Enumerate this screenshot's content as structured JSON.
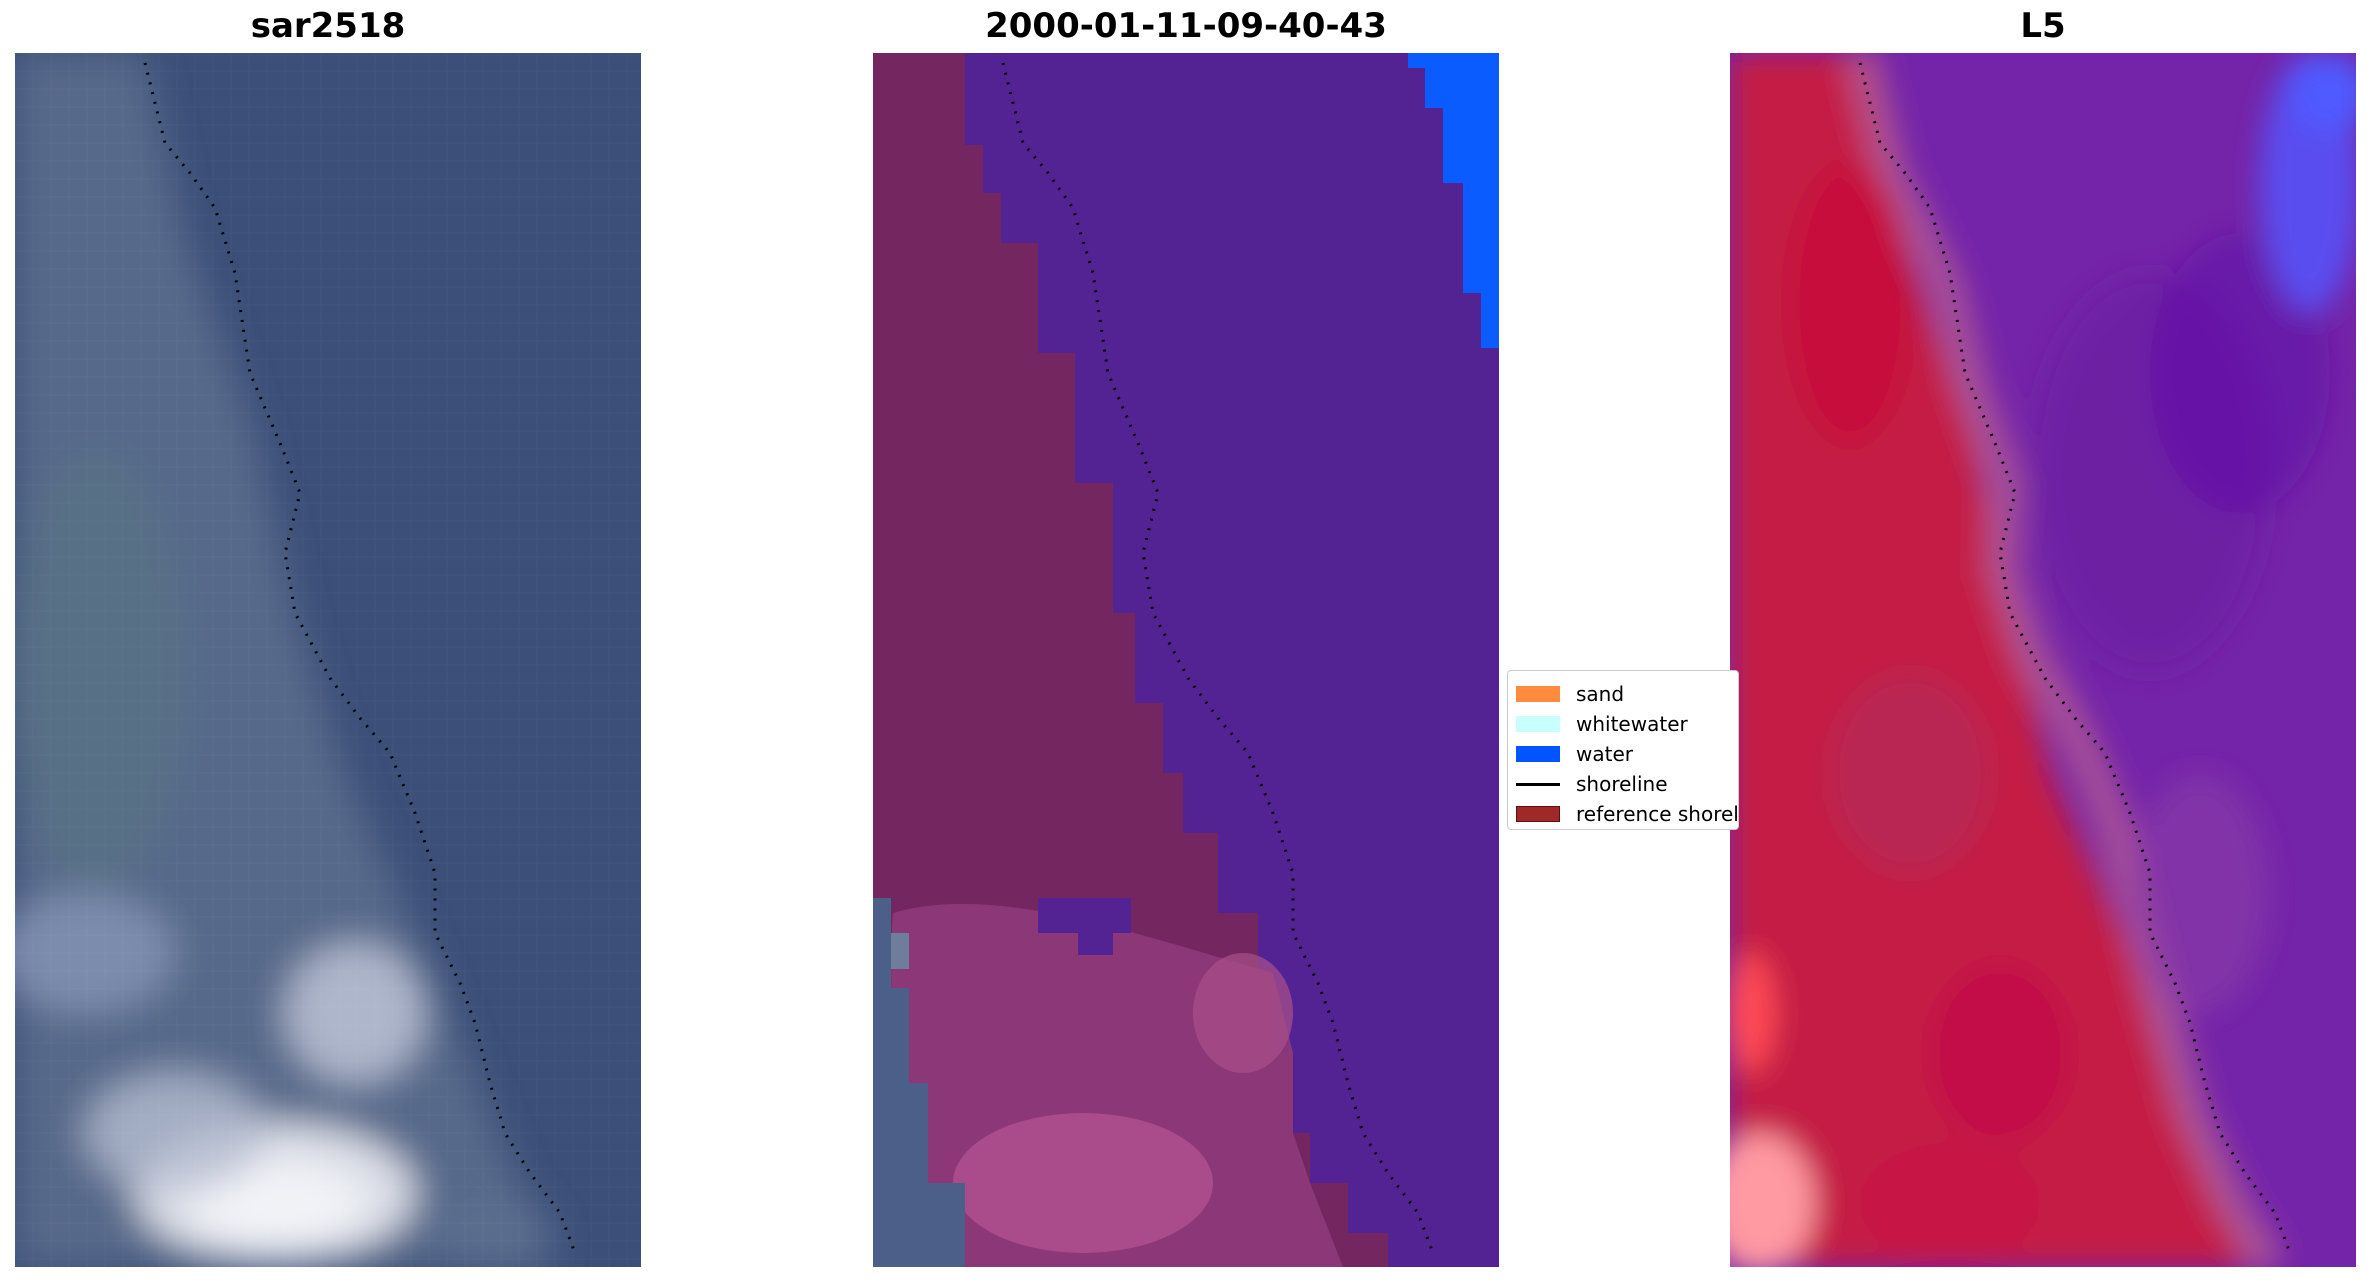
{
  "panels": [
    {
      "title": "sar2518",
      "kind": "rgb-image"
    },
    {
      "title": "2000-01-11-09-40-43",
      "kind": "classified-image"
    },
    {
      "title": "L5",
      "kind": "false-color-image"
    }
  ],
  "legend": {
    "items": [
      {
        "label": "sand",
        "color": "#ff8c3e",
        "type": "patch"
      },
      {
        "label": "whitewater",
        "color": "#c8ffff",
        "type": "patch"
      },
      {
        "label": "water",
        "color": "#0055ff",
        "type": "patch"
      },
      {
        "label": "shoreline",
        "color": "#000000",
        "type": "line"
      },
      {
        "label": "reference shoreline",
        "color": "#a02828",
        "type": "patch"
      }
    ]
  },
  "colors": {
    "sar_water": "#3b4f78",
    "sar_land": "#56698a",
    "class_land": "#742660",
    "class_water": "#542393",
    "class_ocean": "#0a5cff",
    "l5_land": "#c41a45",
    "l5_water": "#7424a8",
    "l5_ocean": "#5a4ef0"
  }
}
